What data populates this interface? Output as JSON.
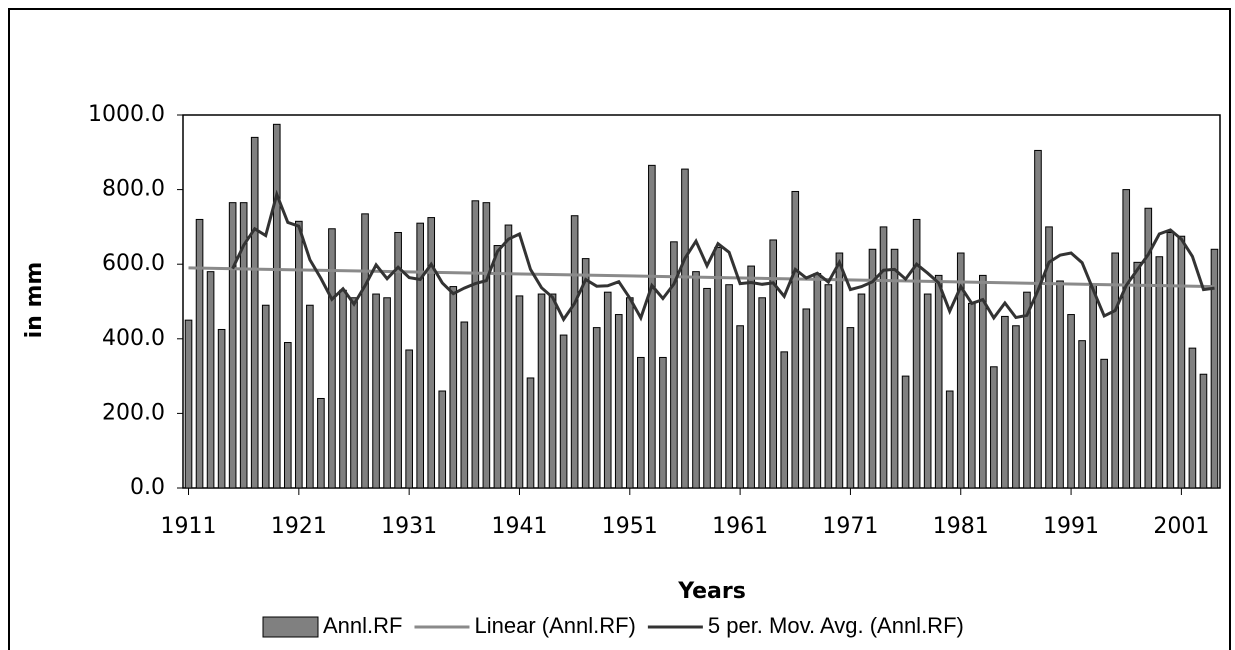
{
  "chart_data": {
    "type": "bar_line",
    "x_label": "Years",
    "y_label": "in mm",
    "x": [
      1911,
      1912,
      1913,
      1914,
      1915,
      1916,
      1917,
      1918,
      1919,
      1920,
      1921,
      1922,
      1923,
      1924,
      1925,
      1926,
      1927,
      1928,
      1929,
      1930,
      1931,
      1932,
      1933,
      1934,
      1935,
      1936,
      1937,
      1938,
      1939,
      1940,
      1941,
      1942,
      1943,
      1944,
      1945,
      1946,
      1947,
      1948,
      1949,
      1950,
      1951,
      1952,
      1953,
      1954,
      1955,
      1956,
      1957,
      1958,
      1959,
      1960,
      1961,
      1962,
      1963,
      1964,
      1965,
      1966,
      1967,
      1968,
      1969,
      1970,
      1971,
      1972,
      1973,
      1974,
      1975,
      1976,
      1977,
      1978,
      1979,
      1980,
      1981,
      1982,
      1983,
      1984,
      1985,
      1986,
      1987,
      1988,
      1989,
      1990,
      1991,
      1992,
      1993,
      1994,
      1995,
      1996,
      1997,
      1998,
      1999,
      2000,
      2001,
      2002,
      2003,
      2004
    ],
    "series": [
      {
        "name": "Annl.RF",
        "kind": "bar",
        "color": "#808080",
        "values": [
          450,
          720,
          580,
          425,
          765,
          765,
          940,
          490,
          975,
          390,
          715,
          490,
          240,
          695,
          530,
          510,
          735,
          520,
          510,
          685,
          370,
          710,
          725,
          260,
          540,
          445,
          770,
          765,
          650,
          705,
          515,
          295,
          520,
          520,
          410,
          730,
          615,
          430,
          525,
          465,
          510,
          350,
          865,
          350,
          660,
          855,
          580,
          535,
          645,
          545,
          435,
          595,
          510,
          665,
          365,
          795,
          480,
          575,
          545,
          630,
          430,
          520,
          640,
          700,
          640,
          300,
          720,
          520,
          570,
          260,
          630,
          495,
          570,
          325,
          460,
          435,
          525,
          905,
          700,
          555,
          465,
          395,
          545,
          345,
          630,
          800,
          605,
          750,
          620,
          685,
          675,
          375,
          305,
          640
        ]
      },
      {
        "name": "Linear (Annl.RF)",
        "kind": "line",
        "color": "#8a8a8a",
        "x": [
          1911,
          2004
        ],
        "values": [
          590,
          540
        ]
      },
      {
        "name": "5 per. Mov. Avg. (Annl.RF)",
        "kind": "line",
        "color": "#333333",
        "values": [
          null,
          null,
          null,
          null,
          588,
          651,
          695,
          677,
          787,
          712,
          702,
          612,
          562,
          506,
          534,
          493,
          542,
          598,
          561,
          592,
          564,
          559,
          600,
          550,
          521,
          536,
          548,
          556,
          634,
          667,
          681,
          586,
          537,
          511,
          452,
          495,
          559,
          541,
          542,
          553,
          509,
          456,
          543,
          508,
          547,
          616,
          662,
          596,
          655,
          632,
          548,
          551,
          546,
          550,
          514,
          586,
          563,
          576,
          552,
          605,
          532,
          540,
          553,
          584,
          586,
          560,
          600,
          576,
          550,
          474,
          540,
          495,
          505,
          456,
          496,
          457,
          463,
          530,
          605,
          624,
          630,
          604,
          532,
          461,
          476,
          543,
          585,
          626,
          681,
          692,
          667,
          621,
          532,
          536
        ]
      }
    ],
    "xlim": [
      1910.5,
      2004.5
    ],
    "xticks": [
      1911,
      1921,
      1931,
      1941,
      1951,
      1961,
      1971,
      1981,
      1991,
      2001
    ],
    "ylim": [
      0,
      1000
    ],
    "yticks": [
      {
        "value": 0,
        "label": "0.0"
      },
      {
        "value": 200,
        "label": "200.0"
      },
      {
        "value": 400,
        "label": "400.0"
      },
      {
        "value": 600,
        "label": "600.0"
      },
      {
        "value": 800,
        "label": "800.0"
      },
      {
        "value": 1000,
        "label": "1000.0"
      }
    ],
    "grid": false,
    "legend": "bottom"
  }
}
